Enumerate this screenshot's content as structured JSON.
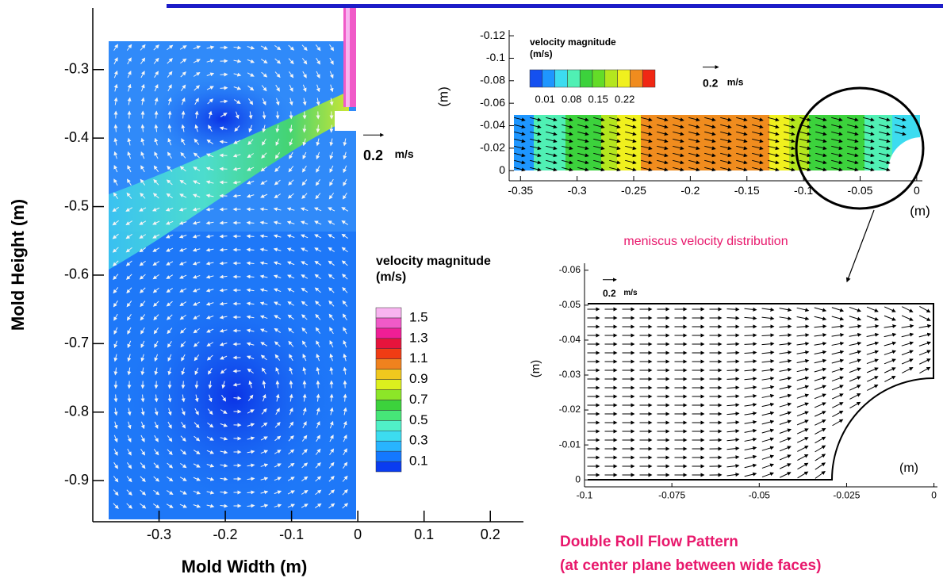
{
  "chart_data": [
    {
      "type": "vector",
      "xlabel": "Mold Width (m)",
      "ylabel": "Mold Height (m)",
      "xlim": [
        -0.4,
        0.25
      ],
      "ylim": [
        -0.96,
        -0.21
      ],
      "xticks": [
        -0.3,
        -0.2,
        -0.1,
        0,
        0.1,
        0.2
      ],
      "yticks": [
        -0.3,
        -0.4,
        -0.5,
        -0.6,
        -0.7,
        -0.8,
        -0.9
      ],
      "reference_vector": {
        "value": 0.2,
        "unit": "m/s"
      },
      "colorbar": {
        "title": "velocity magnitude",
        "unit": "(m/s)",
        "clim": [
          0,
          1.6
        ],
        "ticks": [
          0.1,
          0.3,
          0.5,
          0.7,
          0.9,
          1.1,
          1.3,
          1.5
        ],
        "colors": [
          "#0a3cf0",
          "#1478ff",
          "#28b4ff",
          "#3cdcf0",
          "#50f0c8",
          "#46e678",
          "#3cd23c",
          "#8ce628",
          "#dcf01e",
          "#f0c81e",
          "#f0821e",
          "#f03c14",
          "#e6143c",
          "#f01e96",
          "#f05ac8",
          "#f8b4f0"
        ]
      }
    },
    {
      "type": "contour",
      "xlabel": "(m)",
      "ylabel": "(m)",
      "xlim": [
        -0.36,
        0.005
      ],
      "ylim": [
        0.009,
        -0.125
      ],
      "xticks": [
        -0.35,
        -0.3,
        -0.25,
        -0.2,
        -0.15,
        -0.1,
        -0.05,
        0
      ],
      "yticks": [
        0,
        -0.02,
        -0.04,
        -0.06,
        -0.08,
        -0.1,
        -0.12
      ],
      "reference_vector": {
        "value": 0.2,
        "unit": "m/s"
      },
      "colorbar": {
        "title": "velocity magnitude",
        "unit": "(m/s)",
        "clim": [
          -0.03,
          0.3
        ],
        "ticks": [
          0.01,
          0.08,
          0.15,
          0.22
        ],
        "colors": [
          "#1450f0",
          "#1e96ff",
          "#3cdcf0",
          "#50f0b4",
          "#3cd23c",
          "#64dc28",
          "#b4e61e",
          "#f0f01e",
          "#f08c1e",
          "#f02814"
        ]
      }
    },
    {
      "type": "vector",
      "title": "meniscus velocity distribution",
      "xlabel": "(m)",
      "ylabel": "(m)",
      "xlim": [
        -0.1,
        0.001
      ],
      "ylim": [
        0.002,
        -0.062
      ],
      "xticks": [
        -0.1,
        -0.075,
        -0.05,
        -0.025,
        0
      ],
      "yticks": [
        0,
        -0.01,
        -0.02,
        -0.03,
        -0.04,
        -0.05,
        -0.06
      ],
      "reference_vector": {
        "value": 0.2,
        "unit": "m/s"
      }
    }
  ],
  "caption": [
    "Double Roll Flow Pattern",
    "(at center plane between wide faces)"
  ]
}
